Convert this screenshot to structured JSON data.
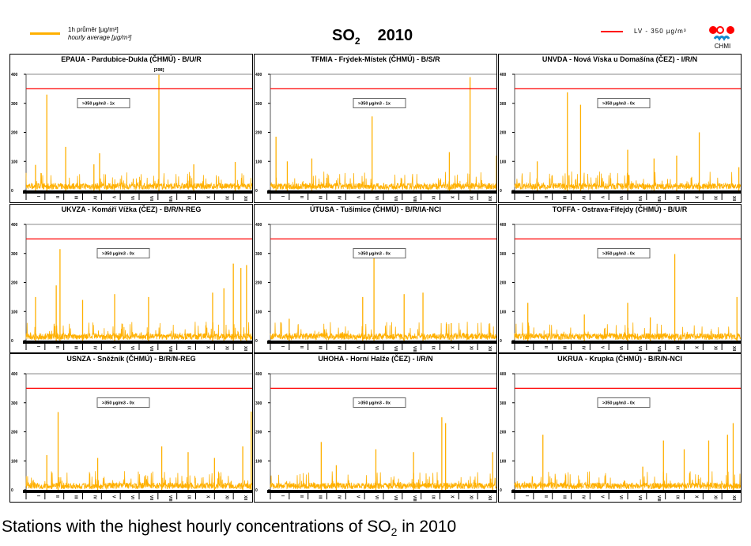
{
  "header": {
    "legend_line1": "1h průměr [µg/m³]",
    "legend_line2": "hourly average [µg/m³]",
    "title_main": "SO",
    "title_sub": "2",
    "year": "2010",
    "lv_label": "LV   - 350 µg/m³",
    "logo_text": "CHMI"
  },
  "colors": {
    "series": "#ffb000",
    "limit": "#ff0000"
  },
  "caption": {
    "text": "Stations with the highest hourly concentrations of SO",
    "sub": "2",
    "suffix": " in 2010"
  },
  "chart_data": [
    {
      "type": "line",
      "title": "EPAUA - Pardubice-Dukla (ČHMÚ) - B/U/R",
      "exceed": ">350 µg/m3 - 1x",
      "annotation": "[398]",
      "peaks": [
        [
          0.5,
          88
        ],
        [
          1.1,
          330
        ],
        [
          2.1,
          150
        ],
        [
          3.6,
          90
        ],
        [
          3.9,
          128
        ],
        [
          7.05,
          398
        ],
        [
          8.9,
          90
        ],
        [
          11.1,
          98
        ]
      ]
    },
    {
      "type": "line",
      "title": "TFMIA - Frýdek-Místek (ČHMÚ) - B/S/R",
      "exceed": ">350 µg/m3 - 1x",
      "peaks": [
        [
          0.3,
          185
        ],
        [
          0.9,
          100
        ],
        [
          2.2,
          110
        ],
        [
          5.4,
          255
        ],
        [
          9.5,
          132
        ],
        [
          10.6,
          390
        ],
        [
          12,
          120
        ]
      ]
    },
    {
      "type": "line",
      "title": "UNVDA - Nová Víska u Domašína (ČEZ) - I/R/N",
      "exceed": ">350 µg/m3 - 0x",
      "peaks": [
        [
          1.2,
          100
        ],
        [
          2.8,
          338
        ],
        [
          3.5,
          295
        ],
        [
          6.0,
          140
        ],
        [
          7.4,
          110
        ],
        [
          8.6,
          120
        ],
        [
          9.8,
          200
        ],
        [
          11.9,
          80
        ]
      ]
    },
    {
      "type": "line",
      "title": "UKVZA - Komáří Vížka (ČEZ) - B/R/N-REG",
      "exceed": ">350 µg/m3 - 0x",
      "peaks": [
        [
          0.5,
          150
        ],
        [
          1.6,
          190
        ],
        [
          1.8,
          315
        ],
        [
          3.0,
          140
        ],
        [
          4.7,
          160
        ],
        [
          6.5,
          150
        ],
        [
          9.9,
          165
        ],
        [
          10.5,
          180
        ],
        [
          11.0,
          265
        ],
        [
          11.4,
          250
        ],
        [
          11.7,
          260
        ]
      ]
    },
    {
      "type": "line",
      "title": "ÚTUSA - Tušimice (ČHMÚ) - B/R/IA-NCI",
      "exceed": ">350 µg/m3 - 0x",
      "peaks": [
        [
          1.0,
          75
        ],
        [
          4.9,
          150
        ],
        [
          5.5,
          305
        ],
        [
          7.1,
          160
        ],
        [
          8.1,
          165
        ],
        [
          9.6,
          60
        ]
      ]
    },
    {
      "type": "line",
      "title": "TOFFA - Ostrava-Fifejdy (ČHMÚ) - B/U/R",
      "exceed": ">350 µg/m3 - 0x",
      "peaks": [
        [
          0.7,
          130
        ],
        [
          3.7,
          90
        ],
        [
          6.0,
          130
        ],
        [
          7.2,
          80
        ],
        [
          8.5,
          298
        ],
        [
          11.8,
          150
        ]
      ]
    },
    {
      "type": "line",
      "title": "USNZA - Sněžník (ČHMÚ) - B/R/N-REG",
      "exceed": ">350 µg/m3 - 0x",
      "peaks": [
        [
          1.1,
          120
        ],
        [
          1.7,
          268
        ],
        [
          3.8,
          110
        ],
        [
          7.2,
          150
        ],
        [
          8.6,
          130
        ],
        [
          10.0,
          110
        ],
        [
          11.5,
          150
        ],
        [
          11.95,
          270
        ]
      ]
    },
    {
      "type": "line",
      "title": "UHOHA - Horní Halže (ČEZ) - I/R/N",
      "exceed": ">350 µg/m3 - 0x",
      "peaks": [
        [
          2.7,
          165
        ],
        [
          3.5,
          85
        ],
        [
          5.6,
          140
        ],
        [
          7.6,
          130
        ],
        [
          9.1,
          250
        ],
        [
          9.3,
          230
        ],
        [
          11.8,
          130
        ]
      ]
    },
    {
      "type": "line",
      "title": "UKRUA - Krupka (ČHMÚ) - B/R/N-NCI",
      "exceed": ">350 µg/m3 - 0x",
      "peaks": [
        [
          1.5,
          190
        ],
        [
          6.8,
          80
        ],
        [
          7.9,
          170
        ],
        [
          9.0,
          140
        ],
        [
          10.3,
          170
        ],
        [
          11.3,
          190
        ],
        [
          11.6,
          230
        ]
      ]
    }
  ],
  "axes": {
    "ylim": [
      0,
      400
    ],
    "yticks": [
      "0",
      "100",
      "200",
      "300",
      "400"
    ],
    "limit_value": 350,
    "months": [
      "I",
      "II",
      "III",
      "IV",
      "V",
      "VI",
      "VII",
      "VIII",
      "IX",
      "X",
      "XI",
      "XII"
    ]
  }
}
